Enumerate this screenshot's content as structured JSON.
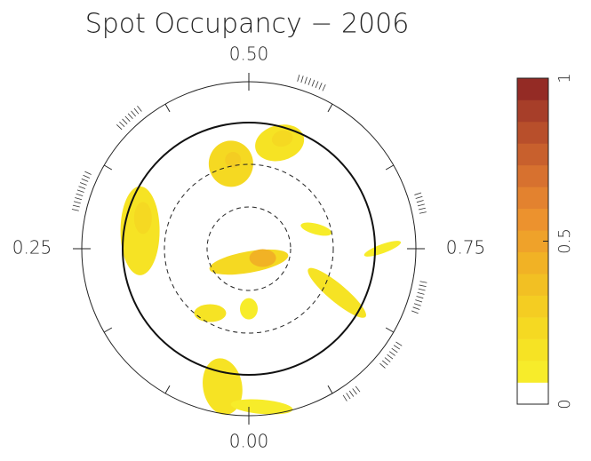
{
  "chart_data": {
    "type": "polar-map",
    "title": "Spot Occupancy − 2006",
    "phase_ticks": [
      {
        "value": 0,
        "label": "0.00"
      },
      {
        "value": 0.25,
        "label": "0.25"
      },
      {
        "value": 0.5,
        "label": "0.50"
      },
      {
        "value": 0.75,
        "label": "0.75"
      }
    ],
    "spots": [
      {
        "phase": 0.0,
        "radius": 0.08,
        "value": 0.2
      },
      {
        "phase": 0.844,
        "radius": 0.1,
        "value": 0.45
      },
      {
        "phase": 0.467,
        "radius": 0.52,
        "value": 0.2
      },
      {
        "phase": 0.472,
        "radius": 0.54,
        "value": 0.3
      },
      {
        "phase": 0.545,
        "radius": 0.66,
        "value": 0.15
      },
      {
        "phase": 0.547,
        "radius": 0.69,
        "value": 0.25
      },
      {
        "phase": 0.276,
        "radius": 0.66,
        "value": 0.15
      },
      {
        "phase": 0.295,
        "radius": 0.66,
        "value": 0.25
      },
      {
        "phase": 0.705,
        "radius": 0.42,
        "value": 0.1
      },
      {
        "phase": 0.75,
        "radius": 0.8,
        "value": 0.1
      },
      {
        "phase": 0.824,
        "radius": 0.59,
        "value": 0.15
      },
      {
        "phase": 0.086,
        "radius": 0.45,
        "value": 0.15
      },
      {
        "phase": 0.0,
        "radius": 0.36,
        "value": 0.1
      },
      {
        "phase": 0.03,
        "radius": 0.84,
        "value": 0.15
      },
      {
        "phase": 0.987,
        "radius": 0.95,
        "value": 0.1
      }
    ],
    "clim": [
      0,
      1
    ],
    "cticks": [
      0,
      0.5,
      1
    ],
    "colors": [
      "#ffffff",
      "#f7ec2a",
      "#f6e324",
      "#f5d922",
      "#f4cd22",
      "#f2c023",
      "#f1b225",
      "#efa22a",
      "#ec922e",
      "#e3822f",
      "#d7712f",
      "#c8602d",
      "#b84f2b",
      "#a73e29",
      "#942b25"
    ]
  }
}
